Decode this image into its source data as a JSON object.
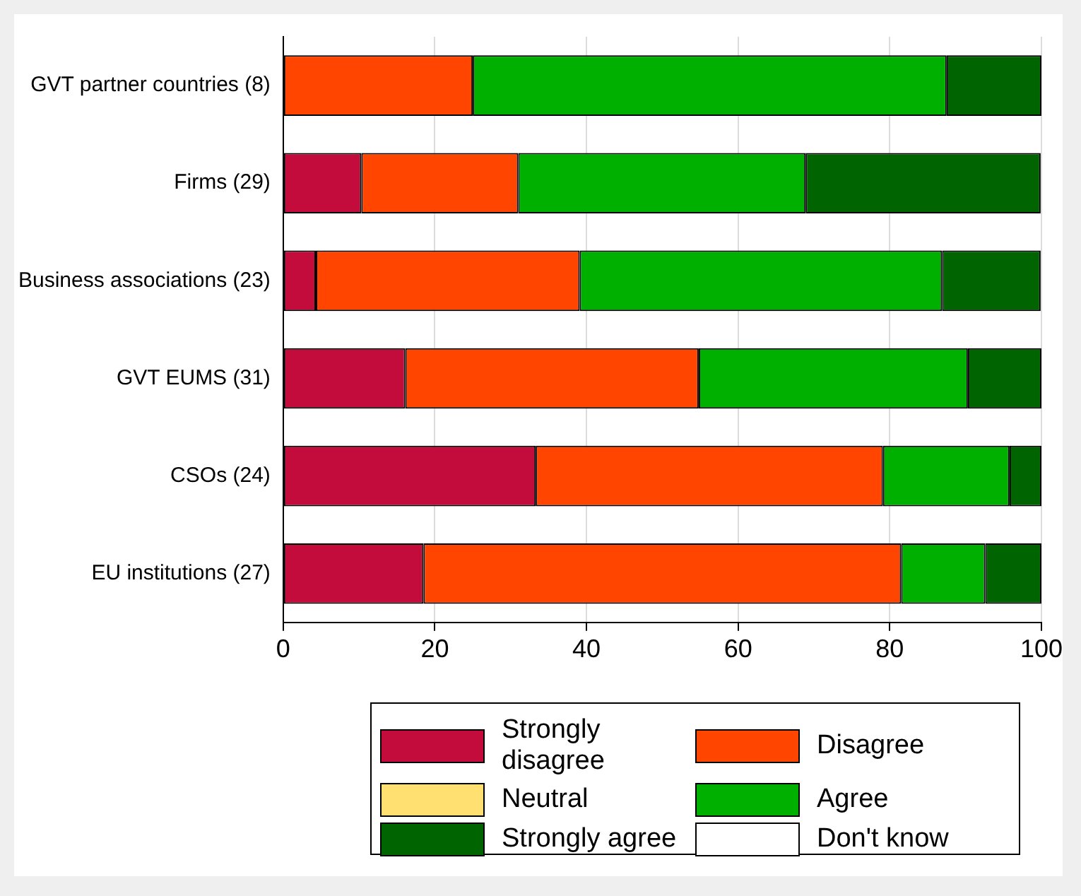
{
  "chart_data": {
    "type": "bar",
    "orientation": "horizontal",
    "stacked": true,
    "categories": [
      "GVT partner countries (8)",
      "Firms (29)",
      "Business associations (23)",
      "GVT EUMS (31)",
      "CSOs (24)",
      "EU institutions (27)"
    ],
    "series": [
      {
        "name": "Strongly disagree",
        "color": "#c40c3c",
        "values": [
          0,
          10.3,
          4.3,
          16.1,
          33.3,
          18.5
        ]
      },
      {
        "name": "Disagree",
        "color": "#ff4500",
        "values": [
          25,
          20.7,
          34.8,
          38.7,
          45.8,
          63.0
        ]
      },
      {
        "name": "Neutral",
        "color": "#ffe070",
        "values": [
          0,
          0,
          0,
          0,
          0,
          0
        ]
      },
      {
        "name": "Agree",
        "color": "#00b000",
        "values": [
          62.5,
          37.9,
          47.8,
          35.5,
          16.7,
          11.1
        ]
      },
      {
        "name": "Strongly agree",
        "color": "#006400",
        "values": [
          12.5,
          31.0,
          13.0,
          9.7,
          4.2,
          7.4
        ]
      },
      {
        "name": "Don't know",
        "color": "#ffffff",
        "values": [
          0,
          0,
          0,
          0,
          0,
          0
        ]
      }
    ],
    "xlim": [
      0,
      100
    ],
    "xticks": [
      0,
      20,
      40,
      60,
      80,
      100
    ],
    "grid": "x",
    "legend": "bottom"
  }
}
